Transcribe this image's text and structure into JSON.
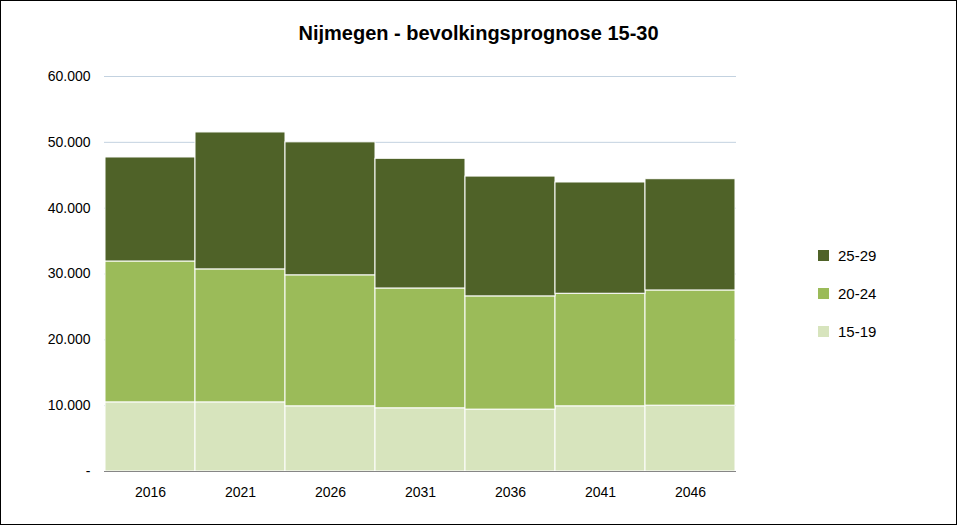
{
  "chart_data": {
    "type": "bar",
    "stacked": true,
    "title": "Nijmegen - bevolkingsprognose 15-30",
    "categories": [
      "2016",
      "2021",
      "2026",
      "2031",
      "2036",
      "2041",
      "2046"
    ],
    "series": [
      {
        "name": "15-19",
        "color": "#d7e4bd",
        "values": [
          10500,
          10500,
          9900,
          9600,
          9400,
          9900,
          10000
        ]
      },
      {
        "name": "20-24",
        "color": "#9bbb59",
        "values": [
          21400,
          20200,
          19900,
          18200,
          17200,
          17100,
          17500
        ]
      },
      {
        "name": "25-29",
        "color": "#4f6228",
        "values": [
          15800,
          20800,
          20200,
          19700,
          18200,
          16900,
          16900
        ]
      }
    ],
    "ylim": [
      0,
      60000
    ],
    "yticks": [
      {
        "value": 0,
        "label": "-"
      },
      {
        "value": 10000,
        "label": "10.000"
      },
      {
        "value": 20000,
        "label": "20.000"
      },
      {
        "value": 30000,
        "label": "30.000"
      },
      {
        "value": 40000,
        "label": "40.000"
      },
      {
        "value": 50000,
        "label": "50.000"
      },
      {
        "value": 60000,
        "label": "60.000"
      }
    ],
    "grid": true,
    "legend": "right"
  }
}
